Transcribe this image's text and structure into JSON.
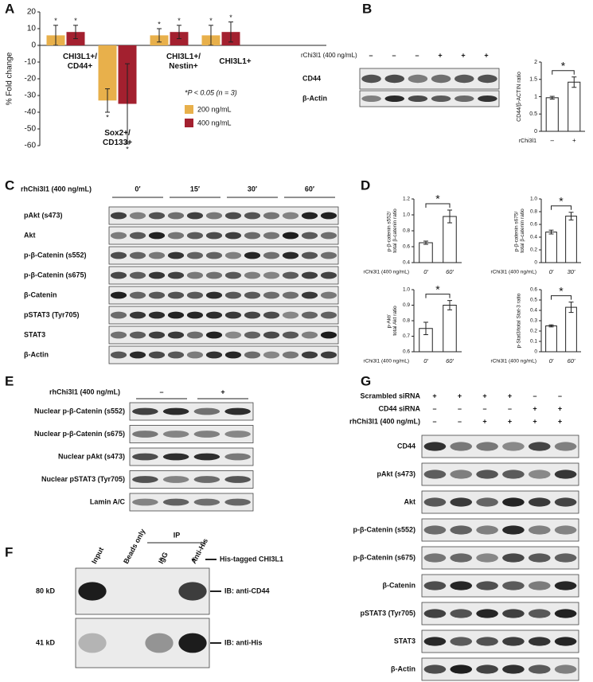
{
  "panel_letters": [
    "A",
    "B",
    "C",
    "D",
    "E",
    "F",
    "G"
  ],
  "chart_data": [
    {
      "type": "bar",
      "y_label": "% Fold change",
      "categories": [
        "CHI3L1+/CD44+",
        "Sox2+/CD133+",
        "CHI3L1+/Nestin+",
        "CHI3L1+"
      ],
      "series": [
        {
          "name": "200 ng/mL",
          "color": "#e8b04b",
          "values": [
            6,
            -33,
            6,
            6
          ],
          "errors": [
            6,
            7,
            4,
            6
          ]
        },
        {
          "name": "400 ng/mL",
          "color": "#a3202f",
          "values": [
            8,
            -35,
            8,
            8
          ],
          "errors": [
            4,
            24,
            4,
            6
          ]
        }
      ],
      "ylim": [
        -60,
        20
      ],
      "yticks": [
        -60,
        -50,
        -40,
        -30,
        -20,
        -10,
        0,
        10,
        20
      ],
      "significance": "*",
      "annotation": "*P < 0.05 (n = 3)"
    },
    {
      "type": "bar",
      "y_label": "CD44/β-ACTIN ratio",
      "x_label": "rChi3l1",
      "categories": [
        "–",
        "+"
      ],
      "values": [
        0.97,
        1.42
      ],
      "errors": [
        0.04,
        0.15
      ],
      "color": "#ffffff",
      "ylim": [
        0,
        2
      ],
      "yticks": [
        0,
        0.5,
        1,
        1.5,
        2
      ],
      "significance": "*"
    },
    {
      "type": "bar",
      "y_label": "p-β-catenin s552/ total β-catenin ratio",
      "x_label": "rChi3l1 (400 ng/mL)",
      "categories": [
        "0′",
        "60′"
      ],
      "values": [
        0.65,
        0.98
      ],
      "errors": [
        0.02,
        0.08
      ],
      "color": "#ffffff",
      "ylim": [
        0.4,
        1.2
      ],
      "yticks": [
        0.4,
        0.6,
        0.8,
        {
          "value": 1,
          "label": "1.0"
        },
        1.2
      ],
      "significance": "*"
    },
    {
      "type": "bar",
      "y_label": "p-β-catenin s675/ total β-catenin ratio",
      "x_label": "rChi3l1 (400 ng/mL)",
      "categories": [
        "0′",
        "30′"
      ],
      "values": [
        0.48,
        0.73
      ],
      "errors": [
        0.03,
        0.06
      ],
      "color": "#ffffff",
      "ylim": [
        0,
        1
      ],
      "yticks": [
        0,
        0.2,
        0.4,
        0.6,
        0.8,
        {
          "value": 1,
          "label": "1.0"
        }
      ],
      "significance": "*"
    },
    {
      "type": "bar",
      "y_label": "p-Akt/ total Akt ratio",
      "x_label": "rChi3l1 (400 ng/mL)",
      "categories": [
        "0′",
        "60′"
      ],
      "values": [
        0.75,
        0.9
      ],
      "errors": [
        0.04,
        0.03
      ],
      "color": "#ffffff",
      "ylim": [
        0.6,
        1
      ],
      "yticks": [
        0.6,
        0.7,
        0.8,
        0.9,
        {
          "value": 1,
          "label": "1.0"
        }
      ],
      "significance": "*"
    },
    {
      "type": "bar",
      "y_label": "p-Stat3/total Stat-3 ratio",
      "x_label": "rChi3l1 (400 ng/mL)",
      "categories": [
        "0′",
        "60′"
      ],
      "values": [
        0.25,
        0.43
      ],
      "errors": [
        0.01,
        0.05
      ],
      "color": "#ffffff",
      "ylim": [
        0,
        0.6
      ],
      "yticks": [
        0,
        0.1,
        0.2,
        0.3,
        0.4,
        0.5,
        0.6
      ],
      "significance": "*"
    }
  ],
  "panel_b": {
    "treatment": "rChi3l1 (400 ng/mL)",
    "signs": [
      "–",
      "–",
      "–",
      "+",
      "+",
      "+"
    ],
    "rows": [
      "CD44",
      "β-Actin"
    ]
  },
  "panel_c": {
    "treatment": "rhChi3l1 (400 ng/mL)",
    "timepoints": [
      "0′",
      "15′",
      "30′",
      "60′"
    ],
    "rows": [
      "pAkt (s473)",
      "Akt",
      "p-β-Catenin (s552)",
      "p-β-Catenin (s675)",
      "β-Catenin",
      "pSTAT3 (Tyr705)",
      "STAT3",
      "β-Actin"
    ]
  },
  "panel_e": {
    "treatment": "rhChi3l1 (400 ng/mL)",
    "signs": [
      "–",
      "+"
    ],
    "rows": [
      "Nuclear p-β-Catenin (s552)",
      "Nuclear p-β-Catenin (s675)",
      "Nuclear pAkt (s473)",
      "Nuclear pSTAT3 (Tyr705)",
      "Lamin A/C"
    ]
  },
  "panel_f": {
    "ip": "IP",
    "lanes": [
      "Input",
      "Beads only",
      "IgG",
      "Anti-His"
    ],
    "his_signs": [
      "+",
      "+"
    ],
    "his_label": "His-tagged CHI3L1",
    "markers": [
      "80 kD",
      "41 kD"
    ],
    "blots": [
      "IB: anti-CD44",
      "IB: anti-His"
    ]
  },
  "panel_g": {
    "conditions": [
      {
        "label": "Scrambled siRNA",
        "signs": [
          "+",
          "+",
          "+",
          "+",
          "–",
          "–"
        ]
      },
      {
        "label": "CD44 siRNA",
        "signs": [
          "–",
          "–",
          "–",
          "–",
          "+",
          "+"
        ]
      },
      {
        "label": "rhChi3l1 (400 ng/mL)",
        "signs": [
          "–",
          "–",
          "+",
          "+",
          "+",
          "+"
        ]
      }
    ],
    "rows": [
      "CD44",
      "pAkt (s473)",
      "Akt",
      "p-β-Catenin (s552)",
      "p-β-Catenin (s675)",
      "β-Catenin",
      "pSTAT3 (Tyr705)",
      "STAT3",
      "β-Actin"
    ]
  }
}
